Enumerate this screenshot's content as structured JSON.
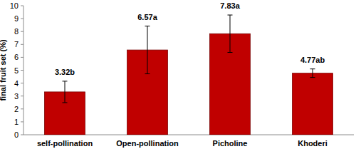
{
  "chart_data": {
    "type": "bar",
    "y_label": "final fruit set (%)",
    "categories": [
      "self-pollination",
      "Open-pollination",
      "Picholine",
      "Khoderi"
    ],
    "values": [
      3.32,
      6.57,
      7.83,
      4.77
    ],
    "value_labels": [
      "3.32b",
      "6.57a",
      "7.83a",
      "4.77ab"
    ],
    "errors": [
      0.83,
      1.85,
      1.45,
      0.33
    ],
    "color": "#c00000",
    "ylim": [
      0,
      10
    ],
    "yticks": [
      0,
      1,
      2,
      3,
      4,
      5,
      6,
      7,
      8,
      9,
      10
    ],
    "grid": false,
    "data_labels": true
  }
}
